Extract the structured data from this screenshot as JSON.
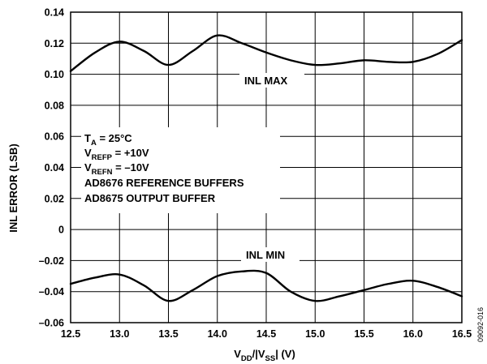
{
  "chart_data": {
    "type": "line",
    "title": "",
    "xlabel": {
      "main": "V",
      "sub1": "DD",
      "mid": "/|V",
      "sub2": "SS",
      "end": "| (V)"
    },
    "ylabel": "INL ERROR (LSB)",
    "xlim": [
      12.5,
      16.5
    ],
    "ylim": [
      -0.06,
      0.14
    ],
    "grid": true,
    "x_ticks": [
      "12.5",
      "13.0",
      "13.5",
      "14.0",
      "14.5",
      "15.0",
      "15.5",
      "16.0",
      "16.5"
    ],
    "y_ticks": [
      "0.14",
      "0.12",
      "0.10",
      "0.08",
      "0.06",
      "0.04",
      "0.02",
      "0",
      "–0.02",
      "–0.04",
      "–0.06"
    ],
    "y_tick_values": [
      0.14,
      0.12,
      0.1,
      0.08,
      0.06,
      0.04,
      0.02,
      0,
      -0.02,
      -0.04,
      -0.06
    ],
    "series": [
      {
        "name": "INL MAX",
        "x": [
          12.5,
          12.75,
          13.0,
          13.25,
          13.5,
          13.75,
          14.0,
          14.25,
          14.5,
          14.75,
          15.0,
          15.25,
          15.5,
          15.75,
          16.0,
          16.25,
          16.5
        ],
        "y": [
          0.102,
          0.114,
          0.121,
          0.115,
          0.106,
          0.115,
          0.125,
          0.12,
          0.114,
          0.109,
          0.106,
          0.107,
          0.109,
          0.108,
          0.108,
          0.113,
          0.122
        ]
      },
      {
        "name": "INL MIN",
        "x": [
          12.5,
          12.75,
          13.0,
          13.25,
          13.5,
          13.75,
          14.0,
          14.25,
          14.5,
          14.75,
          15.0,
          15.25,
          15.5,
          15.75,
          16.0,
          16.25,
          16.5
        ],
        "y": [
          -0.035,
          -0.031,
          -0.029,
          -0.036,
          -0.046,
          -0.039,
          -0.03,
          -0.027,
          -0.028,
          -0.04,
          -0.046,
          -0.043,
          -0.039,
          -0.035,
          -0.033,
          -0.037,
          -0.043
        ]
      }
    ],
    "series_labels": [
      "INL MAX",
      "INL MIN"
    ],
    "annotation": [
      {
        "main": "T",
        "sub": "A",
        "rest": " = 25°C"
      },
      {
        "main": "V",
        "sub": "REFP",
        "rest": " = +10V"
      },
      {
        "main": "V",
        "sub": "REFN",
        "rest": " = –10V"
      },
      {
        "main": "AD8676 REFERENCE BUFFERS",
        "sub": "",
        "rest": ""
      },
      {
        "main": "AD8675 OUTPUT BUFFER",
        "sub": "",
        "rest": ""
      }
    ],
    "figure_id": "09092-016"
  }
}
